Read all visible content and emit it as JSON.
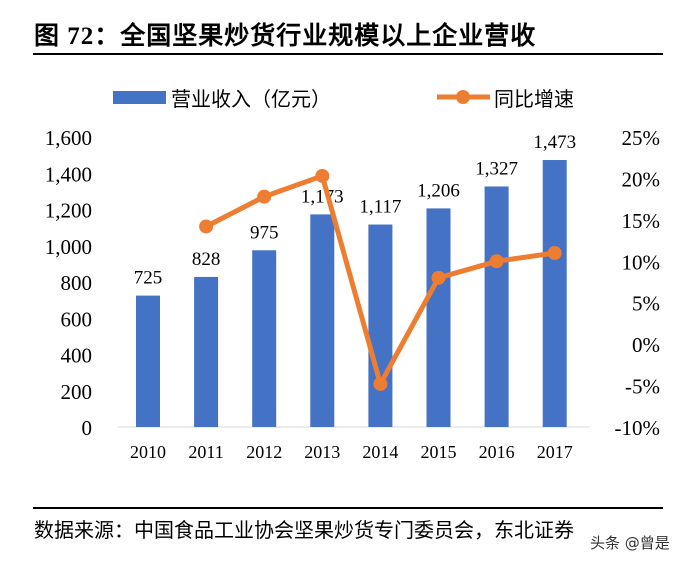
{
  "title": "图 72：全国坚果炒货行业规模以上企业营收",
  "source": "数据来源：中国食品工业协会坚果炒货专门委员会，东北证券",
  "watermark": "头条 @曾是",
  "chart_data": {
    "type": "bar+line",
    "categories": [
      "2010",
      "2011",
      "2012",
      "2013",
      "2014",
      "2015",
      "2016",
      "2017"
    ],
    "series": [
      {
        "name": "营业收入（亿元）",
        "type": "bar",
        "axis": "left",
        "color": "#4472C4",
        "values": [
          725,
          828,
          975,
          1173,
          1117,
          1206,
          1327,
          1473
        ],
        "labels": [
          "725",
          "828",
          "975",
          "1,173",
          "1,117",
          "1,206",
          "1,327",
          "1,473"
        ]
      },
      {
        "name": "同比增速",
        "type": "line",
        "axis": "right",
        "color": "#ED7D31",
        "values": [
          null,
          14.2,
          17.8,
          20.3,
          -4.8,
          8.0,
          10.0,
          11.0
        ]
      }
    ],
    "left_axis": {
      "ylim": [
        0,
        1600
      ],
      "ticks": [
        "0",
        "200",
        "400",
        "600",
        "800",
        "1,000",
        "1,200",
        "1,400",
        "1,600"
      ]
    },
    "right_axis": {
      "ylim": [
        -10,
        25
      ],
      "ticks": [
        "-10%",
        "-5%",
        "0%",
        "5%",
        "10%",
        "15%",
        "20%",
        "25%"
      ]
    },
    "legend": "top",
    "grid": false
  }
}
